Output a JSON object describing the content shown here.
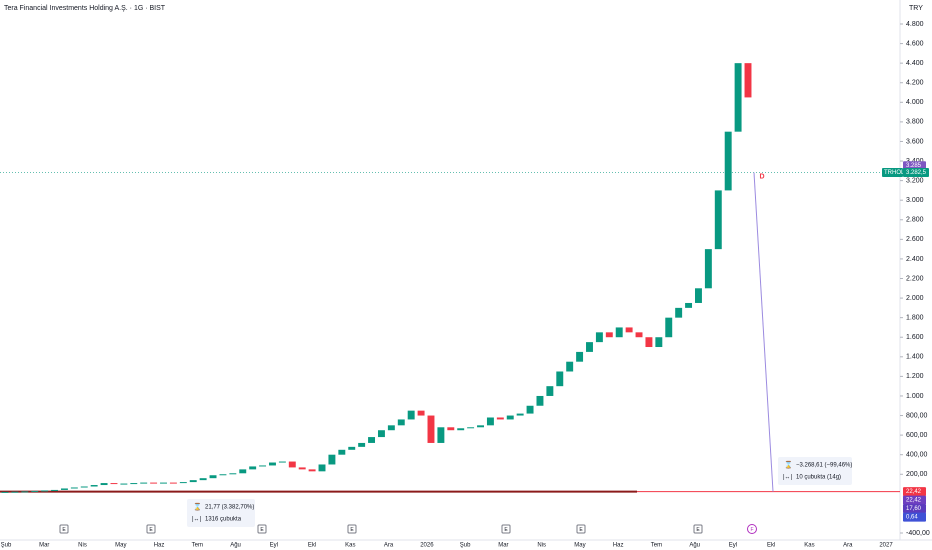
{
  "chart_data": {
    "type": "candlestick",
    "title": "Tera Financial Investments Holding A.Ş. · 1G · BIST",
    "currency": "TRY",
    "values": [
      20,
      22,
      25,
      30,
      35,
      40,
      55,
      65,
      75,
      90,
      110,
      100,
      105,
      110,
      115,
      110,
      115,
      110,
      120,
      140,
      160,
      190,
      200,
      210,
      250,
      280,
      290,
      320,
      330,
      270,
      250,
      230,
      300,
      400,
      450,
      480,
      520,
      580,
      650,
      700,
      760,
      850,
      800,
      520,
      680,
      650,
      670,
      680,
      700,
      780,
      760,
      800,
      820,
      900,
      1000,
      1100,
      1250,
      1350,
      1450,
      1550,
      1650,
      1600,
      1700,
      1650,
      1600,
      1500,
      1600,
      1800,
      1900,
      1950,
      2100,
      2500,
      3100,
      3700,
      4400,
      4050
    ],
    "up_color": "#089981",
    "down_color": "#f23645",
    "ylim": [
      -400,
      4800
    ],
    "yticks": [
      {
        "value": -400,
        "label": "-400,00"
      },
      {
        "value": 200,
        "label": "200,00"
      },
      {
        "value": 400,
        "label": "400,00"
      },
      {
        "value": 600,
        "label": "600,00"
      },
      {
        "value": 800,
        "label": "800,00"
      },
      {
        "value": 1000,
        "label": "1.000"
      },
      {
        "value": 1200,
        "label": "1.200"
      },
      {
        "value": 1400,
        "label": "1.400"
      },
      {
        "value": 1600,
        "label": "1.600"
      },
      {
        "value": 1800,
        "label": "1.800"
      },
      {
        "value": 2000,
        "label": "2.000"
      },
      {
        "value": 2200,
        "label": "2.200"
      },
      {
        "value": 2400,
        "label": "2.400"
      },
      {
        "value": 2600,
        "label": "2.600"
      },
      {
        "value": 2800,
        "label": "2.800"
      },
      {
        "value": 3000,
        "label": "3.000"
      },
      {
        "value": 3200,
        "label": "3.200"
      },
      {
        "value": 3400,
        "label": "3.400"
      },
      {
        "value": 3600,
        "label": "3.600"
      },
      {
        "value": 3800,
        "label": "3.800"
      },
      {
        "value": 4000,
        "label": "4.000"
      },
      {
        "value": 4200,
        "label": "4.200"
      },
      {
        "value": 4400,
        "label": "4.400"
      },
      {
        "value": 4600,
        "label": "4.600"
      },
      {
        "value": 4800,
        "label": "4.800"
      }
    ],
    "x_axis_labels": [
      "Şub",
      "Mar",
      "Nis",
      "May",
      "Haz",
      "Tem",
      "Ağu",
      "Eyl",
      "Ekl",
      "Kas",
      "Ara",
      "2026",
      "Şub",
      "Mar",
      "Nis",
      "May",
      "Haz",
      "Tem",
      "Ağu",
      "Eyl",
      "Ekl",
      "Kas",
      "Ara",
      "2027"
    ],
    "events": [
      "E",
      "E",
      "E",
      "E",
      "E",
      "E",
      "E",
      "F"
    ],
    "price_label": {
      "symbol": "TRHOL",
      "value": 3282.5,
      "label": "3.282,5"
    },
    "alert_label": {
      "value": 3285,
      "label": "3.285"
    },
    "horizontal_line": {
      "value": 22.42,
      "label": "22,42"
    },
    "side_labels": [
      {
        "value": 22.42,
        "label": "22,42"
      },
      {
        "value": 17.6,
        "label": "17,60"
      },
      {
        "value": 0.64,
        "label": "0,64"
      }
    ],
    "marker": "D",
    "measure_1": {
      "change": "21,77 (3.382,70%)",
      "bars": "1316 çubukta"
    },
    "measure_2": {
      "change": "−3.268,61 (−99,46%)",
      "bars": "10 çubukta (14g)"
    }
  }
}
